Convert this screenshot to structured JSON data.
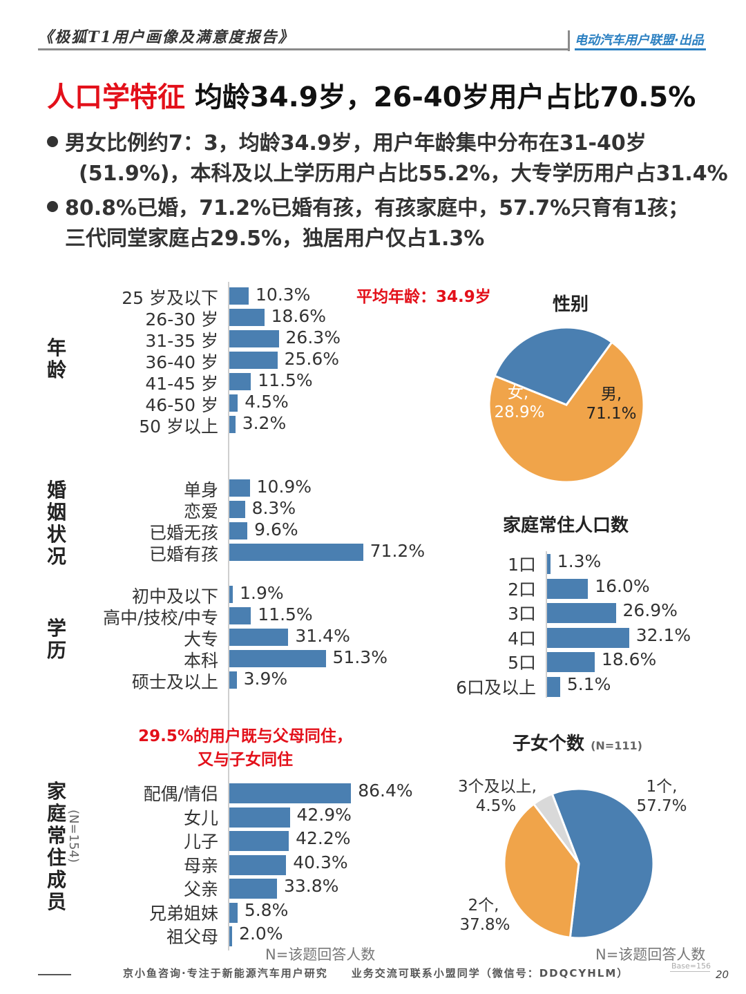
{
  "header": {
    "report_title": "《极狐T1用户画像及满意度报告》",
    "publisher": "电动汽车用户联盟·出品"
  },
  "title": {
    "highlight": "人口学特征",
    "rest": "均龄34.9岁，26-40岁用户占比70.5%"
  },
  "bullets": [
    {
      "line1": "男女比例约7：3，均龄34.9岁，用户年龄集中分布在31-40岁",
      "line2": "(51.9%)，本科及以上学历用户占比55.2%，大专学历用户占31.4%"
    },
    {
      "line1": "80.8%已婚，71.2%已婚有孩，有孩家庭中，57.7%只育有1孩；",
      "line2": "三代同堂家庭占29.5%，独居用户仅占1.3%"
    }
  ],
  "annotations": {
    "avg_age": "平均年龄：34.9岁",
    "coresidence": [
      "29.5%的用户既与父母同住，",
      "又与子女同住"
    ],
    "n_note_left": "N=该题回答人数",
    "n_note_right": "N=该题回答人数",
    "household_n": "(N=154)",
    "children_n": "(N=111)"
  },
  "colors": {
    "bar": "#4a7fb1",
    "orange": "#f0a44a",
    "blue": "#4a7fb1",
    "grey": "#d9d9d9",
    "red": "#e3101a"
  },
  "chart_data": [
    {
      "type": "bar",
      "orientation": "horizontal",
      "section": "年龄",
      "categories": [
        "25 岁及以下",
        "26-30 岁",
        "31-35 岁",
        "36-40 岁",
        "41-45 岁",
        "46-50 岁",
        "50 岁以上"
      ],
      "values": [
        10.3,
        18.6,
        26.3,
        25.6,
        11.5,
        4.5,
        3.2
      ],
      "labels": [
        "10.3%",
        "18.6%",
        "26.3%",
        "25.6%",
        "11.5%",
        "4.5%",
        "3.2%"
      ]
    },
    {
      "type": "bar",
      "orientation": "horizontal",
      "section": "婚姻状况",
      "categories": [
        "单身",
        "恋爱",
        "已婚无孩",
        "已婚有孩"
      ],
      "values": [
        10.9,
        8.3,
        9.6,
        71.2
      ],
      "labels": [
        "10.9%",
        "8.3%",
        "9.6%",
        "71.2%"
      ]
    },
    {
      "type": "bar",
      "orientation": "horizontal",
      "section": "学历",
      "categories": [
        "初中及以下",
        "高中/技校/中专",
        "大专",
        "本科",
        "硕士及以上"
      ],
      "values": [
        1.9,
        11.5,
        31.4,
        51.3,
        3.9
      ],
      "labels": [
        "1.9%",
        "11.5%",
        "31.4%",
        "51.3%",
        "3.9%"
      ]
    },
    {
      "type": "bar",
      "orientation": "horizontal",
      "section": "家庭常住成员",
      "categories": [
        "配偶/情侣",
        "女儿",
        "儿子",
        "母亲",
        "父亲",
        "兄弟姐妹",
        "祖父母"
      ],
      "values": [
        86.4,
        42.9,
        42.2,
        40.3,
        33.8,
        5.8,
        2.0
      ],
      "labels": [
        "86.4%",
        "42.9%",
        "42.2%",
        "40.3%",
        "33.8%",
        "5.8%",
        "2.0%"
      ]
    },
    {
      "type": "pie",
      "title": "性别",
      "slices": [
        {
          "name": "男",
          "value": 71.1,
          "label": "71.1%",
          "color": "#f0a44a"
        },
        {
          "name": "女",
          "value": 28.9,
          "label": "28.9%",
          "color": "#4a7fb1"
        }
      ]
    },
    {
      "type": "bar",
      "orientation": "horizontal",
      "title": "家庭常住人口数",
      "categories": [
        "1口",
        "2口",
        "3口",
        "4口",
        "5口",
        "6口及以上"
      ],
      "values": [
        1.3,
        16.0,
        26.9,
        32.1,
        18.6,
        5.1
      ],
      "labels": [
        "1.3%",
        "16.0%",
        "26.9%",
        "32.1%",
        "18.6%",
        "5.1%"
      ]
    },
    {
      "type": "pie",
      "title": "子女个数",
      "slices": [
        {
          "name": "1个",
          "value": 57.7,
          "label": "57.7%",
          "color": "#4a7fb1"
        },
        {
          "name": "2个",
          "value": 37.8,
          "label": "37.8%",
          "color": "#f0a44a"
        },
        {
          "name": "3个及以上",
          "value": 4.5,
          "label": "4.5%",
          "color": "#d9d9d9"
        }
      ]
    }
  ],
  "footer": {
    "text": "京小鱼咨询·专注于新能源汽车用户研究　　业务交流可联系小盟同学（微信号：DDQCYHLM）",
    "base": "Base=156",
    "page": "20"
  }
}
